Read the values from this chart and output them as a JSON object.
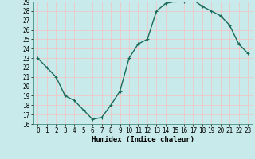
{
  "x": [
    0,
    1,
    2,
    3,
    4,
    5,
    6,
    7,
    8,
    9,
    10,
    11,
    12,
    13,
    14,
    15,
    16,
    17,
    18,
    19,
    20,
    21,
    22,
    23
  ],
  "y": [
    23,
    22,
    21,
    19,
    18.5,
    17.5,
    16.5,
    16.7,
    18,
    19.5,
    23,
    24.5,
    25,
    28,
    28.8,
    29,
    29,
    29.2,
    28.5,
    28,
    27.5,
    26.5,
    24.5,
    23.5
  ],
  "title": "",
  "xlabel": "Humidex (Indice chaleur)",
  "ylabel": "",
  "xlim": [
    -0.5,
    23.5
  ],
  "ylim": [
    16,
    29
  ],
  "yticks": [
    16,
    17,
    18,
    19,
    20,
    21,
    22,
    23,
    24,
    25,
    26,
    27,
    28,
    29
  ],
  "xticks": [
    0,
    1,
    2,
    3,
    4,
    5,
    6,
    7,
    8,
    9,
    10,
    11,
    12,
    13,
    14,
    15,
    16,
    17,
    18,
    19,
    20,
    21,
    22,
    23
  ],
  "line_color": "#1a6b5a",
  "marker": "+",
  "marker_size": 3,
  "bg_color": "#c8eaea",
  "grid_color": "#f0c8c8",
  "tick_label_fontsize": 5.5,
  "xlabel_fontsize": 6.5,
  "line_width": 1.0
}
